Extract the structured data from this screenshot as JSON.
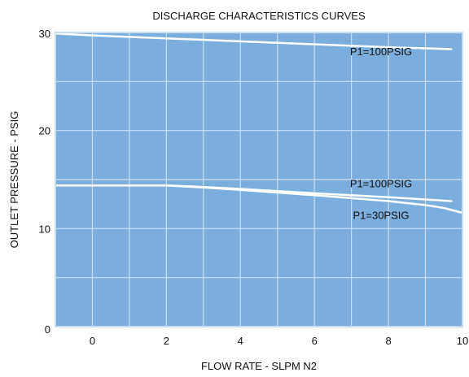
{
  "chart_data": {
    "type": "line",
    "title": "DISCHARGE CHARACTERISTICS CURVES",
    "xlabel": "FLOW RATE - SLPM N2",
    "ylabel": "OUTLET PRESSURE - PSIG",
    "xlim": [
      -1,
      10
    ],
    "ylim": [
      0,
      30
    ],
    "xticks": [
      0,
      2,
      4,
      6,
      8,
      10
    ],
    "yticks": [
      0,
      10,
      20,
      30
    ],
    "x_gridlines": [
      0,
      1,
      2,
      3,
      4,
      5,
      6,
      7,
      8,
      9
    ],
    "y_gridlines": [
      5,
      10,
      15,
      20,
      25
    ],
    "grid": true,
    "plot_background": "#7aaede",
    "grid_color": "#c9ddf2",
    "border_color": "#c9ddf2",
    "line_color": "#ffffff",
    "series": [
      {
        "x": [
          -1,
          0,
          2,
          4,
          6,
          8,
          9.7
        ],
        "y": [
          29.9,
          29.7,
          29.4,
          29.1,
          28.8,
          28.5,
          28.3
        ]
      },
      {
        "x": [
          -1,
          0,
          2,
          3,
          4,
          6,
          8,
          9.7
        ],
        "y": [
          14.4,
          14.4,
          14.4,
          14.25,
          14.05,
          13.6,
          13.2,
          12.8
        ]
      },
      {
        "x": [
          -1,
          0,
          2,
          3,
          4,
          6,
          8,
          9,
          9.5,
          10
        ],
        "y": [
          14.4,
          14.4,
          14.4,
          14.2,
          13.95,
          13.4,
          12.8,
          12.4,
          12.1,
          11.6
        ]
      }
    ],
    "annotations": [
      {
        "text": "P1=100PSIG",
        "x": 7.8,
        "y": 27.7
      },
      {
        "text": "P1=100PSIG",
        "x": 7.8,
        "y": 14.2
      },
      {
        "text": "P1=30PSIG",
        "x": 7.8,
        "y": 11.0
      }
    ]
  }
}
